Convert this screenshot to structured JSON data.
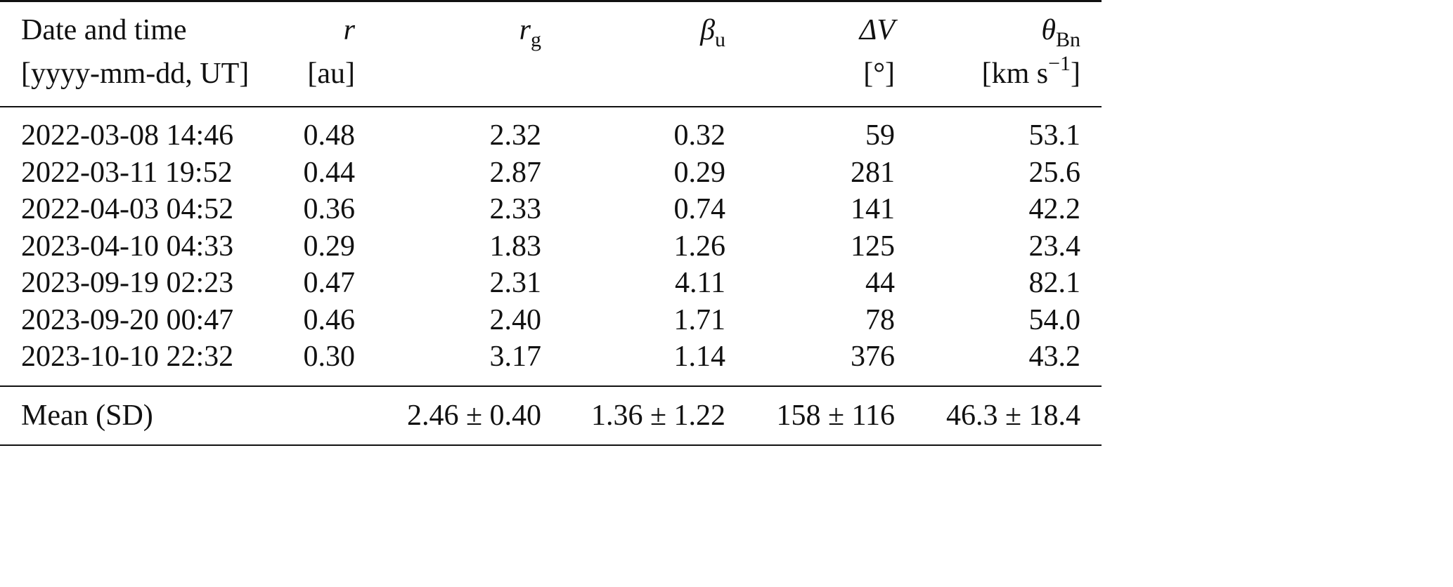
{
  "table": {
    "headers": [
      {
        "line1": "Date and time",
        "units": "[yyyy-mm-dd, UT]"
      },
      {
        "symbol": "r",
        "sub": "",
        "units": "[au]"
      },
      {
        "symbol": "r",
        "sub": "g",
        "units": ""
      },
      {
        "symbol": "β",
        "sub": "u",
        "units": ""
      },
      {
        "symbol": "ΔV",
        "sub": "",
        "units": "[°]"
      },
      {
        "symbol": "θ",
        "sub": "Bn",
        "units": "[km s",
        "units_sup": "−1",
        "units_end": "]"
      }
    ],
    "rows": [
      [
        "2022-03-08 14:46",
        "0.48",
        "2.32",
        "0.32",
        "59",
        "53.1"
      ],
      [
        "2022-03-11 19:52",
        "0.44",
        "2.87",
        "0.29",
        "281",
        "25.6"
      ],
      [
        "2022-04-03 04:52",
        "0.36",
        "2.33",
        "0.74",
        "141",
        "42.2"
      ],
      [
        "2023-04-10 04:33",
        "0.29",
        "1.83",
        "1.26",
        "125",
        "23.4"
      ],
      [
        "2023-09-19 02:23",
        "0.47",
        "2.31",
        "4.11",
        "44",
        "82.1"
      ],
      [
        "2023-09-20 00:47",
        "0.46",
        "2.40",
        "1.71",
        "78",
        "54.0"
      ],
      [
        "2023-10-10 22:32",
        "0.30",
        "3.17",
        "1.14",
        "376",
        "43.2"
      ]
    ],
    "footer": [
      "Mean (SD)",
      "",
      "2.46 ± 0.40",
      "1.36 ± 1.22",
      "158 ± 116",
      "46.3 ± 18.4"
    ]
  }
}
